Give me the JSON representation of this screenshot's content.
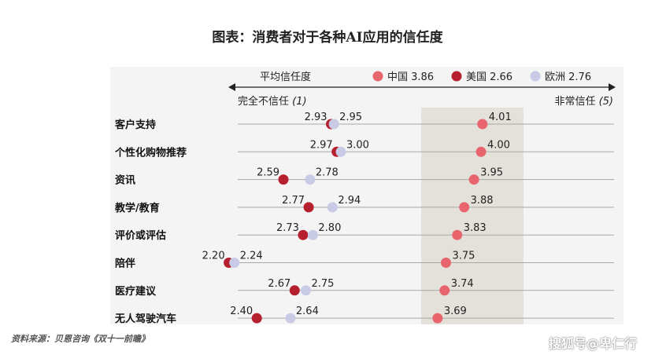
{
  "title": "图表：消费者对于各种AI应用的信任度",
  "source": "资料来源：贝恩咨询《双十一前瞻》",
  "watermark": "搜狐号@卑仁行",
  "chart_data": {
    "type": "scatter",
    "legend_title": "平均信任度",
    "axis_left_label": "完全不信任",
    "axis_left_value": "(1)",
    "axis_right_label": "非常信任",
    "axis_right_value": "(5)",
    "xlim": [
      1,
      5
    ],
    "legend_position": "top",
    "categories": [
      "客户支持",
      "个性化购物推荐",
      "资讯",
      "教学/教育",
      "评价或评估",
      "陪伴",
      "医疗建议",
      "无人驾驶汽车"
    ],
    "series": [
      {
        "name": "中国",
        "legend_value": "3.86",
        "color": "#e8656e",
        "values": [
          4.01,
          4.0,
          3.95,
          3.88,
          3.83,
          3.75,
          3.74,
          3.69
        ]
      },
      {
        "name": "美国",
        "legend_value": "2.66",
        "color": "#b51f2e",
        "values": [
          2.93,
          2.97,
          2.59,
          2.77,
          2.73,
          2.2,
          2.67,
          2.4
        ]
      },
      {
        "name": "欧洲",
        "legend_value": "2.76",
        "color": "#c9cbe6",
        "values": [
          2.95,
          3.0,
          2.78,
          2.94,
          2.8,
          2.24,
          2.75,
          2.64
        ]
      }
    ],
    "value_labels": [
      [
        "4.01",
        "4.00",
        "3.95",
        "3.88",
        "3.83",
        "3.75",
        "3.74",
        "3.69"
      ],
      [
        "2.93",
        "2.97",
        "2.59",
        "2.77",
        "2.73",
        "2.20",
        "2.67",
        "2.40"
      ],
      [
        "2.95",
        "3.00",
        "2.78",
        "2.94",
        "2.80",
        "2.24",
        "2.75",
        "2.64"
      ]
    ]
  }
}
